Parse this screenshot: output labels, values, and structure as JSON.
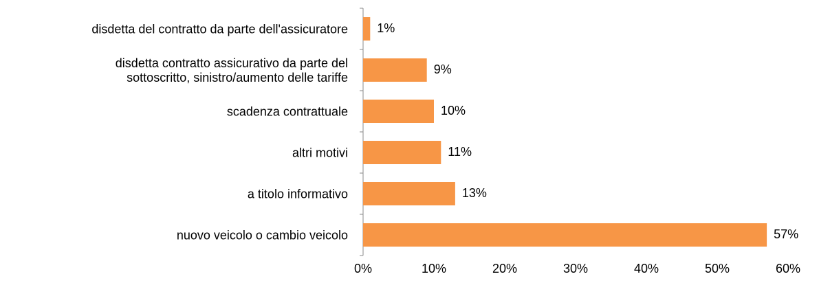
{
  "chart_data": {
    "type": "bar",
    "orientation": "horizontal",
    "categories": [
      "disdetta del contratto da parte dell'assicuratore",
      "disdetta contratto assicurativo da parte del\nsottoscritto, sinistro/aumento delle tariffe",
      "scadenza contrattuale",
      "altri motivi",
      "a titolo informativo",
      "nuovo veicolo o cambio veicolo"
    ],
    "values": [
      1,
      9,
      10,
      11,
      13,
      57
    ],
    "value_labels": [
      "1%",
      "9%",
      "10%",
      "11%",
      "13%",
      "57%"
    ],
    "color": "#f79646",
    "xlim": [
      0,
      60
    ],
    "xticks": [
      {
        "value": 0,
        "label": "0%"
      },
      {
        "value": 10,
        "label": "10%"
      },
      {
        "value": 20,
        "label": "20%"
      },
      {
        "value": 30,
        "label": "30%"
      },
      {
        "value": 40,
        "label": "40%"
      },
      {
        "value": 50,
        "label": "50%"
      },
      {
        "value": 60,
        "label": "60%"
      }
    ],
    "grid": false
  }
}
